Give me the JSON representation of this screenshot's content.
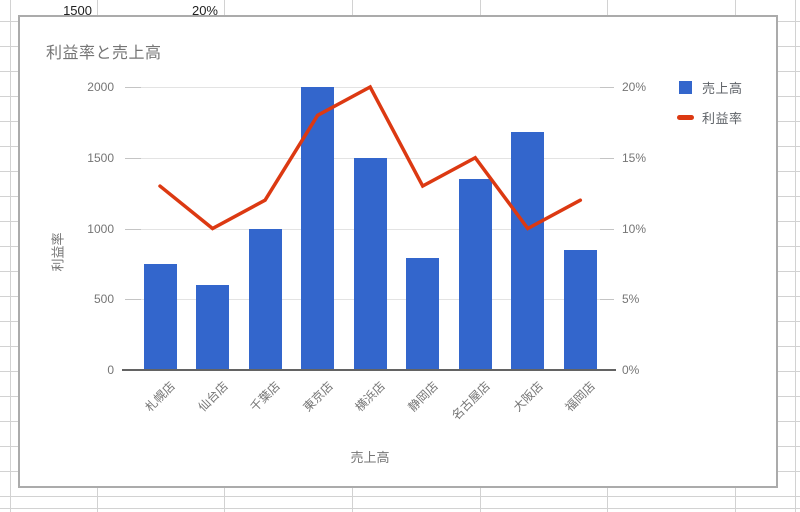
{
  "spreadsheet": {
    "cells": [
      {
        "text": "1500"
      },
      {
        "text": "20%"
      }
    ]
  },
  "chart": {
    "title": "利益率と売上高",
    "colors": {
      "bar": "#3366cc",
      "line": "#dc3912",
      "gridline": "#e3e3e3",
      "baseline": "#636363",
      "axis_text": "#757575",
      "legend_text": "#5f6368",
      "card_border": "#ababab"
    }
  },
  "chart_data": {
    "type": "combo",
    "categories": [
      "札幌店",
      "仙台店",
      "千葉店",
      "東京店",
      "横浜店",
      "静岡店",
      "名古屋店",
      "大阪店",
      "福岡店"
    ],
    "series": [
      {
        "name": "売上高",
        "type": "bar",
        "axis": "left",
        "color": "#3366cc",
        "values": [
          750,
          600,
          1000,
          2000,
          1500,
          790,
          1350,
          1680,
          850
        ]
      },
      {
        "name": "利益率",
        "type": "line",
        "axis": "right",
        "color": "#dc3912",
        "values_percent": [
          13,
          10,
          12,
          18,
          20,
          13,
          15,
          10,
          12
        ]
      }
    ],
    "title": "利益率と売上高",
    "xlabel": "売上高",
    "ylabel_left": "利益率",
    "left_axis": {
      "title": "利益率",
      "ticks": [
        0,
        500,
        1000,
        1500,
        2000
      ],
      "range": [
        0,
        2000
      ]
    },
    "right_axis": {
      "ticks": [
        "0%",
        "5%",
        "10%",
        "15%",
        "20%"
      ],
      "range_percent": [
        0,
        20
      ]
    },
    "grid": true,
    "legend_position": "top-right"
  }
}
